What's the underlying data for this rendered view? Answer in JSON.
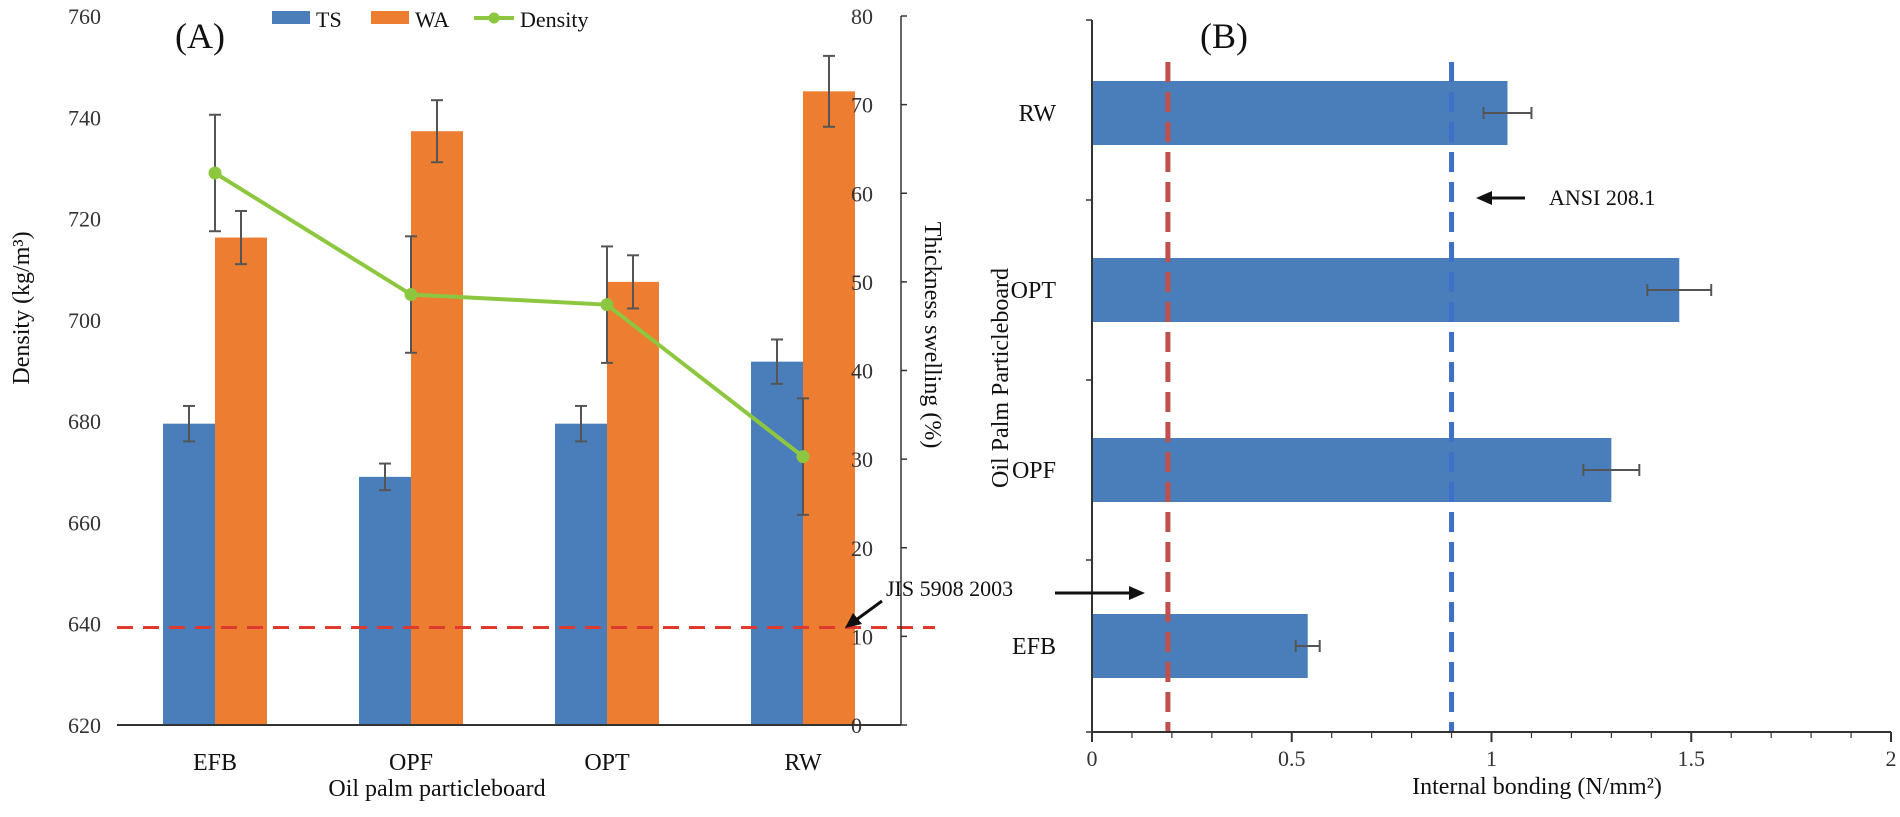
{
  "colors": {
    "ts": "#4a7ebb",
    "wa": "#ed7d31",
    "density": "#8dc63f",
    "jis_line": "#e03a2f",
    "ansi_line": "#3e6fc9",
    "red_standard": "#c0504d",
    "err": "#555555",
    "axis": "#333333"
  },
  "chart_data": [
    {
      "type": "bar",
      "panel_label": "(A)",
      "title": "",
      "xlabel": "Oil palm particleboard",
      "ylabel": "Density (kg/m³)",
      "y2label": "Thickness swelling (%)",
      "categories": [
        "EFB",
        "OPF",
        "OPT",
        "RW"
      ],
      "ylim": [
        620,
        760
      ],
      "yticks": [
        "620",
        "640",
        "660",
        "680",
        "700",
        "720",
        "740",
        "760"
      ],
      "y2lim": [
        0,
        80
      ],
      "y2ticks": [
        "0",
        "10",
        "20",
        "30",
        "40",
        "50",
        "60",
        "70",
        "80"
      ],
      "legend": [
        "TS",
        "WA",
        "Density"
      ],
      "series": [
        {
          "name": "TS",
          "kind": "bar",
          "axis": "right",
          "values": [
            34,
            28,
            34,
            41
          ],
          "errors": [
            2,
            1.5,
            2,
            2.5
          ]
        },
        {
          "name": "WA",
          "kind": "bar",
          "axis": "right",
          "values": [
            55,
            67,
            50,
            71.5
          ],
          "errors": [
            3,
            3.5,
            3,
            4
          ]
        },
        {
          "name": "Density",
          "kind": "line",
          "axis": "left",
          "values": [
            729,
            705,
            703,
            673
          ],
          "errors": [
            11.5,
            11.5,
            11.5,
            11.5
          ]
        }
      ],
      "reference_line": {
        "label": "JIS 5908 2003",
        "axis": "right",
        "value": 11
      }
    },
    {
      "type": "bar",
      "orientation": "horizontal",
      "panel_label": "(B)",
      "title": "",
      "xlabel": "Internal bonding (N/mm²)",
      "ylabel": "Oil Palm Particleboard",
      "categories": [
        "EFB",
        "OPF",
        "OPT",
        "RW"
      ],
      "values": [
        0.54,
        1.3,
        1.47,
        1.04
      ],
      "errors": [
        0.03,
        0.07,
        0.08,
        0.06
      ],
      "xlim": [
        0,
        2
      ],
      "xticks": [
        "0",
        "0.5",
        "1",
        "1.5",
        "2"
      ],
      "reference_lines": [
        {
          "label": "JIS 5908 2003",
          "value": 0.19
        },
        {
          "label": "ANSI 208.1",
          "value": 0.9
        }
      ]
    }
  ]
}
